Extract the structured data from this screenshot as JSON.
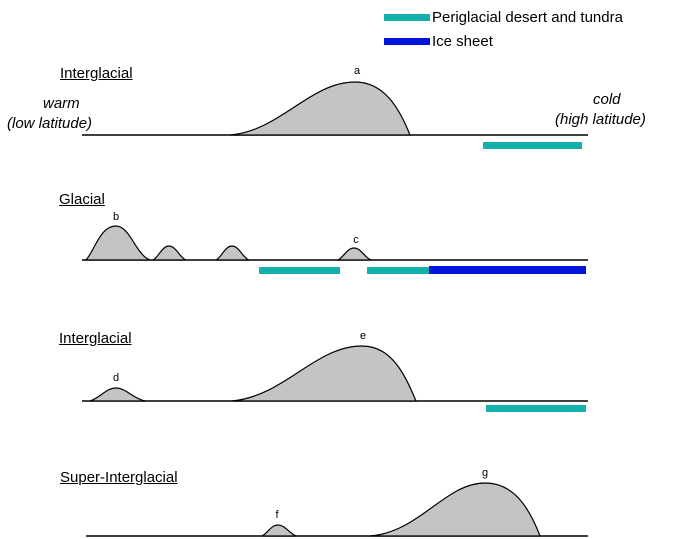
{
  "legend": [
    {
      "label": "Periglacial desert and tundra",
      "color": "#14b0ac"
    },
    {
      "label": "Ice sheet",
      "color": "#0014dc"
    }
  ],
  "panels": [
    {
      "title": "Interglacial",
      "peaks": [
        "a"
      ]
    },
    {
      "title": "Glacial",
      "peaks": [
        "b",
        "c"
      ]
    },
    {
      "title": "Interglacial",
      "peaks": [
        "d",
        "e"
      ]
    },
    {
      "title": "Super-Interglacial",
      "peaks": [
        "f",
        "g"
      ]
    }
  ],
  "gradient": {
    "left_line1": "warm",
    "left_line2": "(low latitude)",
    "right_line1": "cold",
    "right_line2": "(high latitude)"
  },
  "colors": {
    "fill": "#c4c4c4",
    "stroke": "#000000"
  }
}
